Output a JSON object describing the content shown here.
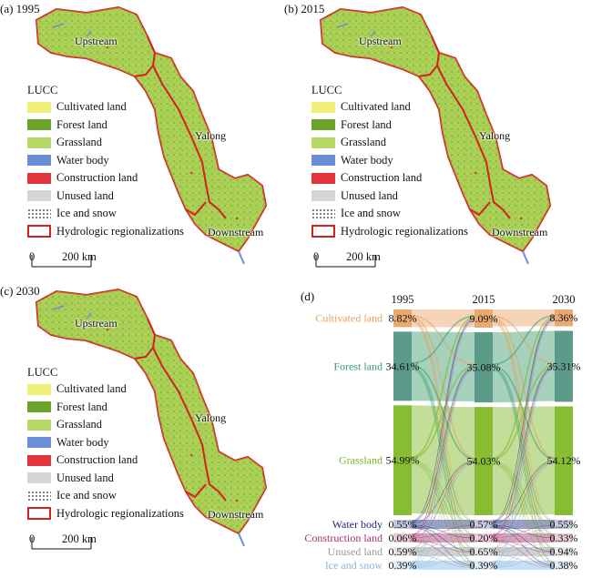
{
  "panels": [
    {
      "label": "(a) 1995",
      "regions": [
        "Upstream",
        "Yalong",
        "Downstream"
      ]
    },
    {
      "label": "(b) 2015",
      "regions": [
        "Upstream",
        "Yalong",
        "Downstream"
      ]
    },
    {
      "label": "(c) 2030",
      "regions": [
        "Upstream",
        "Yalong",
        "Downstream"
      ]
    }
  ],
  "legend": {
    "title": "LUCC",
    "items": [
      {
        "label": "Cultivated land",
        "color": "#eef07a",
        "style": "fill"
      },
      {
        "label": "Forest land",
        "color": "#6aa52a",
        "style": "fill"
      },
      {
        "label": "Grassland",
        "color": "#b7d867",
        "style": "fill"
      },
      {
        "label": "Water body",
        "color": "#6a8fd6",
        "style": "fill"
      },
      {
        "label": "Construction land",
        "color": "#e2343c",
        "style": "fill"
      },
      {
        "label": "Unused land",
        "color": "#d6d6d6",
        "style": "fill"
      },
      {
        "label": "Ice and snow",
        "color": "#555555",
        "style": "dots"
      },
      {
        "label": "Hydrologic regionalizations",
        "color": "#d42020",
        "style": "outline"
      }
    ]
  },
  "scale_bar": {
    "start": "0",
    "end": "200 km"
  },
  "sankey": {
    "label": "(d)",
    "years": [
      "1995",
      "2015",
      "2030"
    ],
    "categories": [
      "Cultivated land",
      "Forest land",
      "Grassland",
      "Water body",
      "Construction land",
      "Unused land",
      "Ice and snow"
    ],
    "category_colors": [
      "#e8a060",
      "#3a9a6a",
      "#7ab51d",
      "#1a2a7a",
      "#b0306a",
      "#999999",
      "#7fb8e8"
    ],
    "node_colors": [
      "#e8a060",
      "#4a8f7c",
      "#7ab51d",
      "#1a2a7a",
      "#b0306a",
      "#999999",
      "#7fb8e8"
    ],
    "values_text": [
      [
        "8.82%",
        "34.61%",
        "54.99%",
        "0.55%",
        "0.06%",
        "0.59%",
        "0.39%"
      ],
      [
        "9.09%",
        "35.08%",
        "54.03%",
        "0.57%",
        "0.20%",
        "0.65%",
        "0.39%"
      ],
      [
        "8.36%",
        "35.31%",
        "54.12%",
        "0.55%",
        "0.33%",
        "0.94%",
        "0.38%"
      ]
    ]
  },
  "chart_data": {
    "type": "sankey",
    "title": "",
    "x": [
      "1995",
      "2015",
      "2030"
    ],
    "series": [
      {
        "name": "Cultivated land",
        "values": [
          8.82,
          9.09,
          8.36
        ]
      },
      {
        "name": "Forest land",
        "values": [
          34.61,
          35.08,
          35.31
        ]
      },
      {
        "name": "Grassland",
        "values": [
          54.99,
          54.03,
          54.12
        ]
      },
      {
        "name": "Water body",
        "values": [
          0.55,
          0.57,
          0.55
        ]
      },
      {
        "name": "Construction land",
        "values": [
          0.06,
          0.2,
          0.33
        ]
      },
      {
        "name": "Unused land",
        "values": [
          0.59,
          0.65,
          0.94
        ]
      },
      {
        "name": "Ice and snow",
        "values": [
          0.39,
          0.39,
          0.38
        ]
      }
    ],
    "unit": "%"
  }
}
